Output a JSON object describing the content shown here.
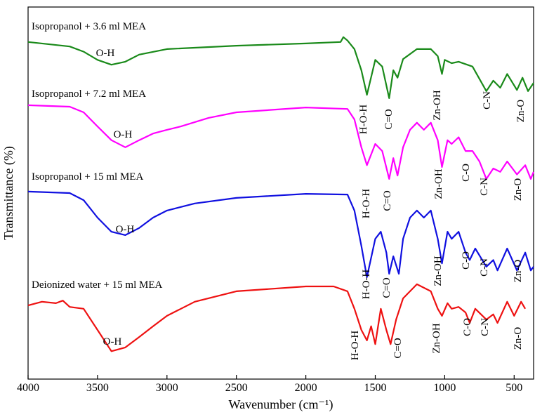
{
  "chart_data": {
    "type": "line",
    "xlabel": "Wavenumber (cm⁻¹)",
    "ylabel": "Transmittance (%)",
    "xlim": [
      4000,
      360
    ],
    "ylim": [
      0,
      100
    ],
    "xticks": [
      4000,
      3500,
      3000,
      2500,
      2000,
      1500,
      1000,
      500
    ],
    "series": [
      {
        "name": "Isopropanol + 3.6 ml MEA",
        "color": "#1a8a1a",
        "x": [
          4000,
          3700,
          3600,
          3500,
          3400,
          3300,
          3200,
          3000,
          2500,
          2000,
          1750,
          1730,
          1700,
          1650,
          1600,
          1560,
          1500,
          1450,
          1400,
          1370,
          1340,
          1300,
          1200,
          1100,
          1050,
          1020,
          1000,
          950,
          900,
          800,
          700,
          650,
          600,
          550,
          480,
          440,
          400,
          360
        ],
        "values": [
          90.6,
          89.4,
          88,
          85.8,
          84.5,
          85.3,
          87.2,
          88.7,
          89.6,
          90.2,
          90.6,
          91.9,
          91,
          88.7,
          83,
          76.4,
          85.8,
          84,
          75.5,
          83,
          81,
          86,
          88.7,
          88.7,
          86.8,
          82,
          85.8,
          84.9,
          85.3,
          84,
          77.4,
          80.2,
          78.3,
          82,
          77.7,
          81,
          77.4,
          79.6
        ]
      },
      {
        "name": "Isopropanol + 7.2 ml MEA",
        "color": "#ff00ff",
        "x": [
          4000,
          3700,
          3600,
          3500,
          3400,
          3300,
          3200,
          3100,
          3000,
          2900,
          2700,
          2500,
          2000,
          1700,
          1650,
          1600,
          1560,
          1500,
          1450,
          1400,
          1370,
          1340,
          1300,
          1250,
          1200,
          1150,
          1100,
          1050,
          1020,
          980,
          950,
          900,
          850,
          800,
          750,
          700,
          650,
          600,
          550,
          480,
          420,
          380,
          360
        ],
        "values": [
          73.6,
          73.2,
          71.7,
          67.9,
          64.2,
          62.3,
          64.2,
          66,
          67,
          67.9,
          70.2,
          71.7,
          73,
          72.6,
          69.8,
          62.3,
          57.5,
          63.2,
          61.3,
          53.8,
          59.4,
          54.7,
          62.3,
          67,
          68.9,
          67,
          68.9,
          64.2,
          57,
          64.2,
          63.2,
          65,
          61.3,
          61.3,
          58.5,
          53.8,
          56.6,
          55.7,
          58.5,
          55,
          57.5,
          53.8,
          55.7
        ]
      },
      {
        "name": "Isopropanol + 15 ml MEA",
        "color": "#1010e0",
        "x": [
          4000,
          3700,
          3600,
          3500,
          3400,
          3300,
          3200,
          3100,
          3000,
          2800,
          2500,
          2000,
          1700,
          1650,
          1600,
          1560,
          1500,
          1460,
          1420,
          1400,
          1370,
          1330,
          1300,
          1250,
          1200,
          1150,
          1100,
          1050,
          1020,
          980,
          950,
          900,
          850,
          820,
          780,
          700,
          650,
          620,
          550,
          480,
          420,
          380,
          360
        ],
        "values": [
          50.4,
          50,
          48.1,
          43.4,
          39.6,
          38.7,
          40.6,
          43.4,
          45.3,
          47.2,
          48.7,
          49.8,
          49.6,
          45.3,
          35.8,
          27.4,
          37.7,
          39.6,
          34,
          28.3,
          33,
          28.3,
          37.7,
          43.4,
          45.3,
          43.4,
          45.3,
          37.7,
          31.1,
          39.6,
          37.7,
          39.6,
          34,
          32,
          35.1,
          30.2,
          32,
          29.2,
          35.1,
          29.2,
          34,
          29.2,
          30.2
        ]
      },
      {
        "name": "Deionized water  + 15 ml MEA",
        "color": "#ee1111",
        "x": [
          4000,
          3900,
          3800,
          3750,
          3700,
          3600,
          3500,
          3400,
          3300,
          3200,
          3100,
          3000,
          2800,
          2500,
          2000,
          1800,
          1700,
          1650,
          1600,
          1560,
          1530,
          1500,
          1460,
          1420,
          1390,
          1350,
          1300,
          1200,
          1100,
          1050,
          1020,
          980,
          950,
          900,
          850,
          820,
          780,
          700,
          650,
          620,
          550,
          500,
          450,
          420
        ],
        "values": [
          19.8,
          20.8,
          20.4,
          21.1,
          19.4,
          18.9,
          13.2,
          7.5,
          8.5,
          11.3,
          14.2,
          17,
          20.8,
          23.6,
          24.9,
          24.9,
          23.6,
          18.9,
          13.2,
          10.4,
          14.2,
          9.4,
          18.9,
          13.2,
          9.4,
          16,
          21.7,
          25.5,
          23.6,
          18.9,
          17,
          20.4,
          18.9,
          19.4,
          17.9,
          15.1,
          18.9,
          16,
          17.4,
          15.1,
          20.8,
          17,
          20.8,
          18.9
        ]
      }
    ],
    "annotations": [
      "O-H",
      "H-O-H",
      "C=O",
      "Zn-OH",
      "C-N",
      "Zn-O",
      "O-H",
      "H-O-H",
      "C=O",
      "Zn-OH",
      "C-O",
      "C-N",
      "Zn-O",
      "O-H",
      "H-O-H",
      "C=O",
      "Zn-OH",
      "C-O",
      "C-N",
      "Zn-O",
      "O-H",
      "H-O-H",
      "C=O",
      "Zn-OH",
      "C-O",
      "C-N",
      "Zn-O"
    ]
  }
}
